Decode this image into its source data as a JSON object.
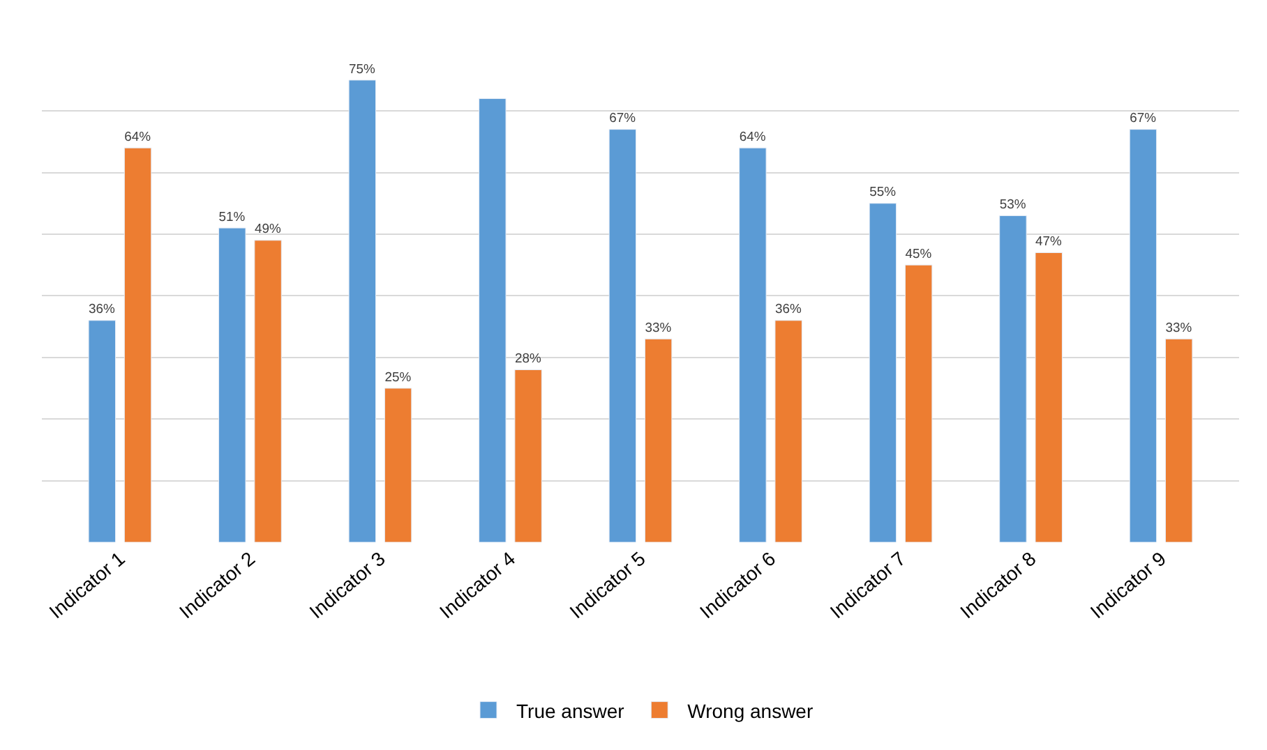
{
  "chart_data": {
    "type": "bar",
    "categories": [
      "Indicator 1",
      "Indicator 2",
      "Indicator 3",
      "Indicator 4",
      "Indicator 5",
      "Indicator 6",
      "Indicator 7",
      "Indicator 8",
      "Indicator 9"
    ],
    "series": [
      {
        "name": "True answer",
        "color": "#5b9bd5",
        "values": [
          36,
          51,
          75,
          72,
          67,
          64,
          55,
          53,
          67
        ],
        "value_labels": [
          "36%",
          "51%",
          "75%",
          null,
          "67%",
          "64%",
          "55%",
          "53%",
          "67%"
        ]
      },
      {
        "name": "Wrong answer",
        "color": "#ed7d31",
        "values": [
          64,
          49,
          25,
          28,
          33,
          36,
          45,
          47,
          33
        ],
        "value_labels": [
          "64%",
          "49%",
          "25%",
          "28%",
          "33%",
          "36%",
          "45%",
          "47%",
          "33%"
        ]
      }
    ],
    "grid": "y",
    "legend": "bottom",
    "tick_labels": "x"
  }
}
